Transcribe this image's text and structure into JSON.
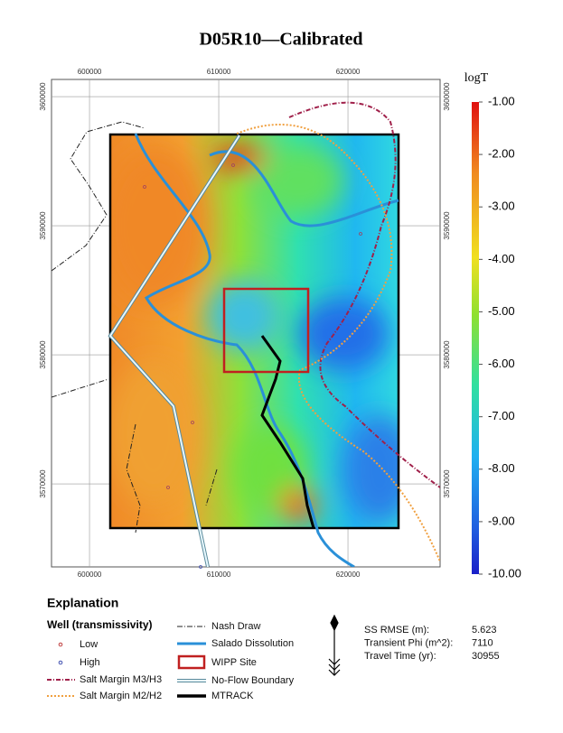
{
  "title": "D05R10—Calibrated",
  "map": {
    "xlim": [
      597060,
      627130
    ],
    "ylim": [
      3563570,
      3601330
    ],
    "xticks": [
      600000,
      610000,
      620000
    ],
    "yticks": [
      3570000,
      3580000,
      3590000,
      3600000
    ]
  },
  "colorbar": {
    "title": "logT",
    "lim": [
      -10,
      -1
    ],
    "ticks": [
      {
        "value": -1,
        "label": "-1.00"
      },
      {
        "value": -2,
        "label": "-2.00"
      },
      {
        "value": -3,
        "label": "-3.00"
      },
      {
        "value": -4,
        "label": "-4.00"
      },
      {
        "value": -5,
        "label": "-5.00"
      },
      {
        "value": -6,
        "label": "-6.00"
      },
      {
        "value": -7,
        "label": "-7.00"
      },
      {
        "value": -8,
        "label": "-8.00"
      },
      {
        "value": -9,
        "label": "-9.00"
      },
      {
        "value": -10,
        "label": "-10.00"
      }
    ]
  },
  "legend": {
    "title": "Explanation",
    "well_heading": "Well (transmissivity)",
    "items": [
      "Low",
      "High",
      "Salt Margin M3/H3",
      "Salt Margin M2/H2",
      "Nash Draw",
      "Salado Dissolution",
      "WIPP Site",
      "No-Flow Boundary",
      "MTRACK"
    ]
  },
  "stats": [
    {
      "label": "SS RMSE (m):",
      "value": 5.623
    },
    {
      "label": "Transient Phi (m^2):",
      "value": 7110
    },
    {
      "label": "Travel Time (yr):",
      "value": 30955
    }
  ]
}
